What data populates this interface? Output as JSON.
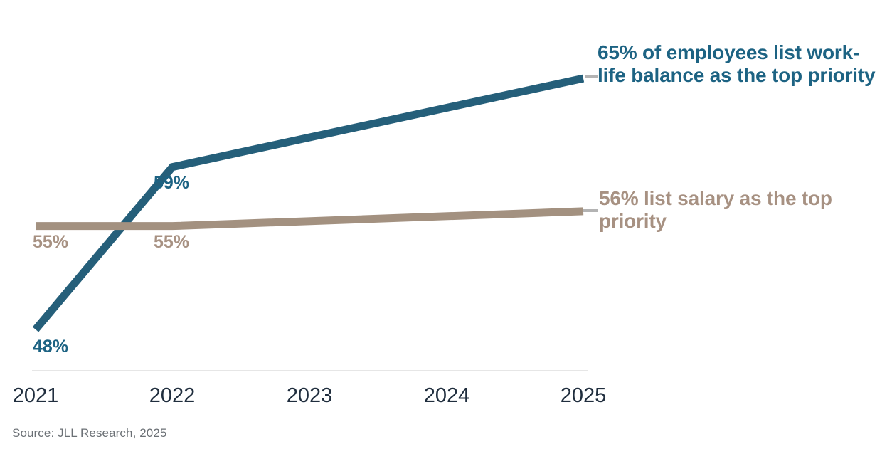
{
  "chart_data": {
    "type": "line",
    "title": "",
    "xlabel": "",
    "ylabel": "",
    "grid": false,
    "legend_position": "annotations-right",
    "x_ticks": [
      "2021",
      "2022",
      "2023",
      "2024",
      "2025"
    ],
    "x_range": [
      2021,
      2025
    ],
    "y_unit": "percent",
    "series": [
      {
        "name": "work-life balance as top priority",
        "line_color": "#255f7a",
        "text_color": "#1d6383",
        "x": [
          2021,
          2022,
          2025
        ],
        "values": [
          48,
          59,
          65
        ],
        "point_labels": {
          "2021": "48%",
          "2022": "59%"
        },
        "annotation": "65% of employees list work-life balance as the top priority"
      },
      {
        "name": "salary as top priority",
        "line_color": "#a39180",
        "text_color": "#a79182",
        "x": [
          2021,
          2022,
          2025
        ],
        "values": [
          55,
          55,
          56
        ],
        "point_labels": {
          "2021": "55%",
          "2022": "55%"
        },
        "annotation": "56% list salary as the top priority"
      }
    ],
    "source": "Source: JLL Research, 2025"
  },
  "colors": {
    "background": "#ffffff",
    "axis_line": "#e6e6e6",
    "tick_label": "#202e3e",
    "source_text": "#6b7075",
    "connector": "#b3b3b3"
  }
}
